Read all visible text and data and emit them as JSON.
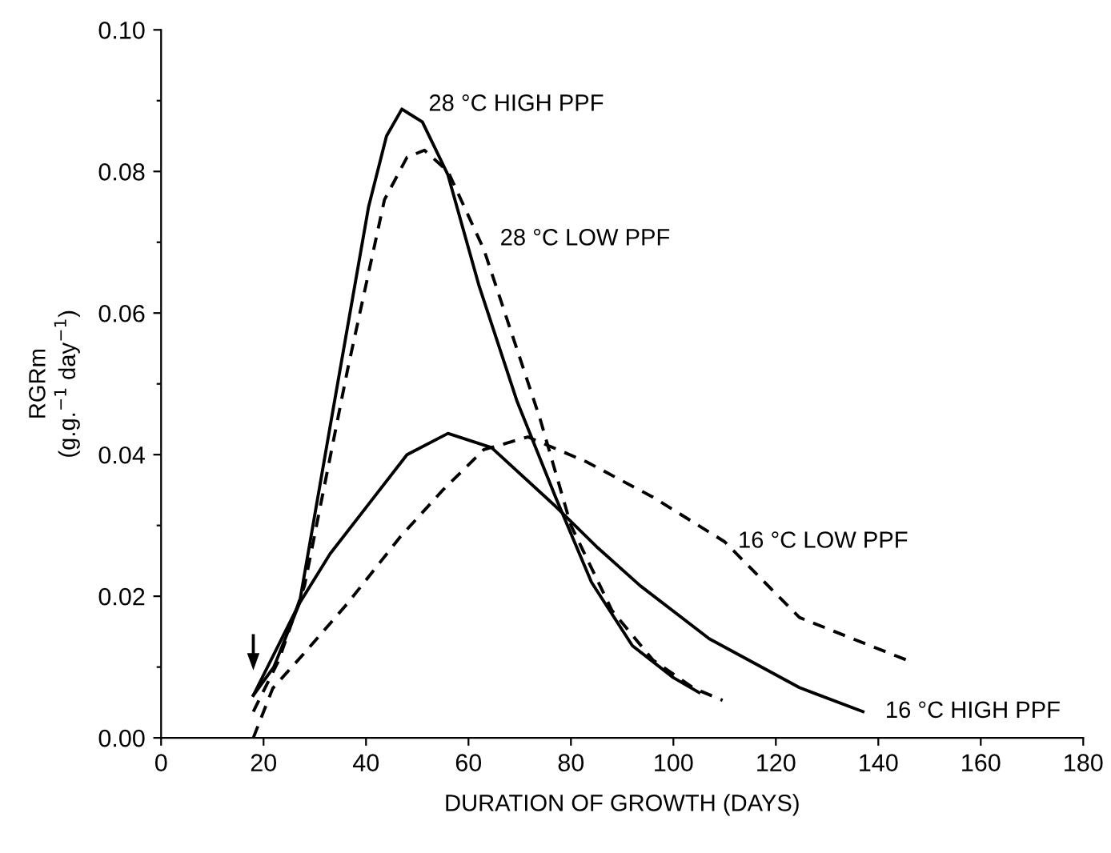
{
  "chart_data": {
    "type": "line",
    "xlabel": "DURATION OF GROWTH (DAYS)",
    "ylabel": "RGRm\n(g.g.$^{−1}$ day$^{−1}$)",
    "xlim": [
      0,
      180
    ],
    "xticks": [
      0,
      20,
      40,
      60,
      80,
      100,
      120,
      140,
      160,
      180
    ],
    "ylim": [
      0,
      0.1
    ],
    "yticks": [
      {
        "value": 0,
        "label": "0.00"
      },
      {
        "value": 0.01,
        "label": null
      },
      {
        "value": 0.02,
        "label": "0.02"
      },
      {
        "value": 0.03,
        "label": null
      },
      {
        "value": 0.04,
        "label": "0.04"
      },
      {
        "value": 0.05,
        "label": null
      },
      {
        "value": 0.06,
        "label": "0.06"
      },
      {
        "value": 0.07,
        "label": null
      },
      {
        "value": 0.08,
        "label": "0.08"
      },
      {
        "value": 0.09,
        "label": null
      },
      {
        "value": 0.1,
        "label": "0.10"
      }
    ],
    "grid": false,
    "legend": false,
    "marker": "none",
    "series": [
      {
        "name": "28 °C HIGH PPF",
        "color": "#000000",
        "line_style": "solid",
        "x": [
          18,
          22,
          27,
          33,
          40.5,
          44,
          47,
          51,
          56,
          62,
          69.5,
          77,
          84,
          92,
          100,
          105
        ],
        "values": [
          0.006,
          0.01,
          0.019,
          0.044,
          0.075,
          0.085,
          0.0888,
          0.087,
          0.0795,
          0.064,
          0.0475,
          0.034,
          0.022,
          0.013,
          0.0085,
          0.0064
        ]
      },
      {
        "name": "28 °C LOW PPF",
        "color": "#000000",
        "line_style": "dashed",
        "x": [
          18,
          23,
          28,
          36.4,
          43.6,
          48,
          51.4,
          56,
          63,
          74,
          80,
          88,
          96,
          104,
          109.6
        ],
        "values": [
          0.0037,
          0.011,
          0.0215,
          0.052,
          0.076,
          0.082,
          0.083,
          0.08,
          0.069,
          0.045,
          0.03,
          0.018,
          0.011,
          0.007,
          0.0053
        ]
      },
      {
        "name": "16 °C LOW PPF",
        "color": "#000000",
        "line_style": "dashed",
        "x": [
          18,
          21.8,
          28,
          36.4,
          46.7,
          55,
          63,
          71.6,
          83,
          96,
          110,
          124.6,
          135,
          145.5
        ],
        "values": [
          0.0,
          0.007,
          0.012,
          0.019,
          0.0284,
          0.035,
          0.0407,
          0.0425,
          0.039,
          0.034,
          0.0277,
          0.017,
          0.014,
          0.011
        ]
      },
      {
        "name": "16 °C HIGH PPF",
        "color": "#000000",
        "line_style": "solid",
        "x": [
          18,
          27,
          33,
          40.5,
          48,
          56,
          64.5,
          77,
          85,
          93.5,
          107,
          124.6,
          137
        ],
        "values": [
          0.006,
          0.019,
          0.026,
          0.033,
          0.04,
          0.043,
          0.041,
          0.0327,
          0.027,
          0.0215,
          0.014,
          0.0071,
          0.0037
        ]
      }
    ]
  }
}
